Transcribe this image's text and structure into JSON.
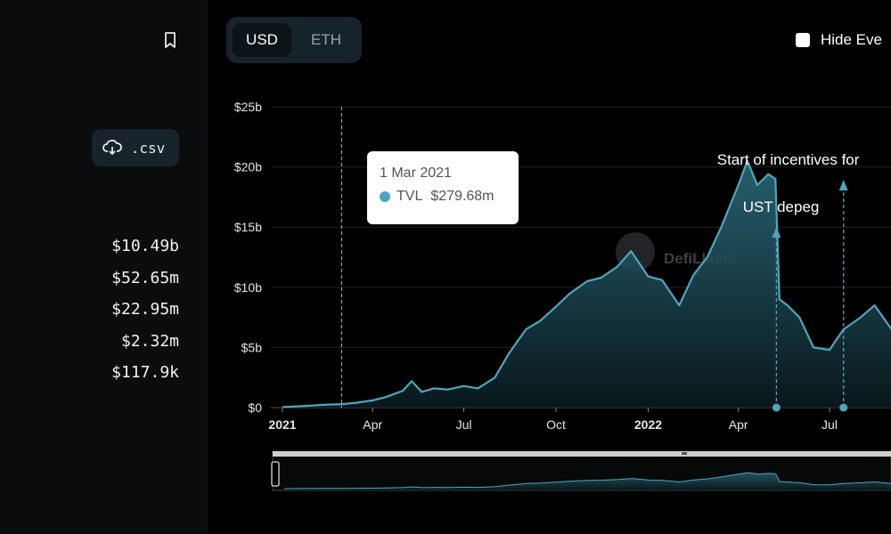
{
  "sidebar": {
    "csv_label": ".csv",
    "stats": [
      "$10.49b",
      "$52.65m",
      "$22.95m",
      "$2.32m",
      "$117.9k"
    ]
  },
  "currency_toggle": {
    "options": [
      "USD",
      "ETH"
    ],
    "selected": "USD"
  },
  "hide_events_label": "Hide Eve",
  "tooltip": {
    "date": "1 Mar 2021",
    "series": "TVL",
    "value": "$279.68m"
  },
  "colors": {
    "line": "#4ea6bd",
    "accent_dark": "#16232a"
  },
  "chart_data": {
    "type": "area",
    "ylim": [
      0,
      25
    ],
    "y_unit": "billion USD",
    "y_ticks": [
      "$0",
      "$5b",
      "$10b",
      "$15b",
      "$20b",
      "$25b"
    ],
    "x_ticks": [
      {
        "label": "2021",
        "date": "2021-01-01",
        "bold": true
      },
      {
        "label": "Apr",
        "date": "2021-04-01"
      },
      {
        "label": "Jul",
        "date": "2021-07-01"
      },
      {
        "label": "Oct",
        "date": "2021-10-01"
      },
      {
        "label": "2022",
        "date": "2022-01-01",
        "bold": true
      },
      {
        "label": "Apr",
        "date": "2022-04-01"
      },
      {
        "label": "Jul",
        "date": "2022-07-01"
      }
    ],
    "grid": true,
    "series": [
      {
        "name": "TVL",
        "x": [
          "2021-01-01",
          "2021-01-15",
          "2021-02-01",
          "2021-02-15",
          "2021-03-01",
          "2021-03-15",
          "2021-04-01",
          "2021-04-15",
          "2021-05-01",
          "2021-05-10",
          "2021-05-20",
          "2021-06-01",
          "2021-06-15",
          "2021-07-01",
          "2021-07-15",
          "2021-08-01",
          "2021-08-15",
          "2021-09-01",
          "2021-09-15",
          "2021-10-01",
          "2021-10-15",
          "2021-11-01",
          "2021-11-15",
          "2021-12-01",
          "2021-12-15",
          "2022-01-01",
          "2022-01-15",
          "2022-02-01",
          "2022-02-15",
          "2022-03-01",
          "2022-03-15",
          "2022-04-01",
          "2022-04-10",
          "2022-04-20",
          "2022-05-01",
          "2022-05-08",
          "2022-05-12",
          "2022-05-20",
          "2022-06-01",
          "2022-06-15",
          "2022-07-01",
          "2022-07-15",
          "2022-08-01",
          "2022-08-15",
          "2022-09-01"
        ],
        "values": [
          0.05,
          0.1,
          0.18,
          0.25,
          0.28,
          0.4,
          0.6,
          0.9,
          1.4,
          2.2,
          1.3,
          1.6,
          1.5,
          1.8,
          1.6,
          2.5,
          4.5,
          6.5,
          7.2,
          8.4,
          9.5,
          10.5,
          10.8,
          11.7,
          13.0,
          10.9,
          10.6,
          8.5,
          11.0,
          12.5,
          15.0,
          18.5,
          20.5,
          18.5,
          19.4,
          19.0,
          9.0,
          8.5,
          7.5,
          5.0,
          4.8,
          6.5,
          7.5,
          8.5,
          6.5
        ]
      }
    ],
    "events": [
      {
        "label": "UST depeg",
        "date": "2022-05-09"
      },
      {
        "label": "Start of incentives for",
        "date": "2022-07-15"
      }
    ],
    "hover_date": "2021-03-01",
    "watermark": "DefiLlama"
  }
}
